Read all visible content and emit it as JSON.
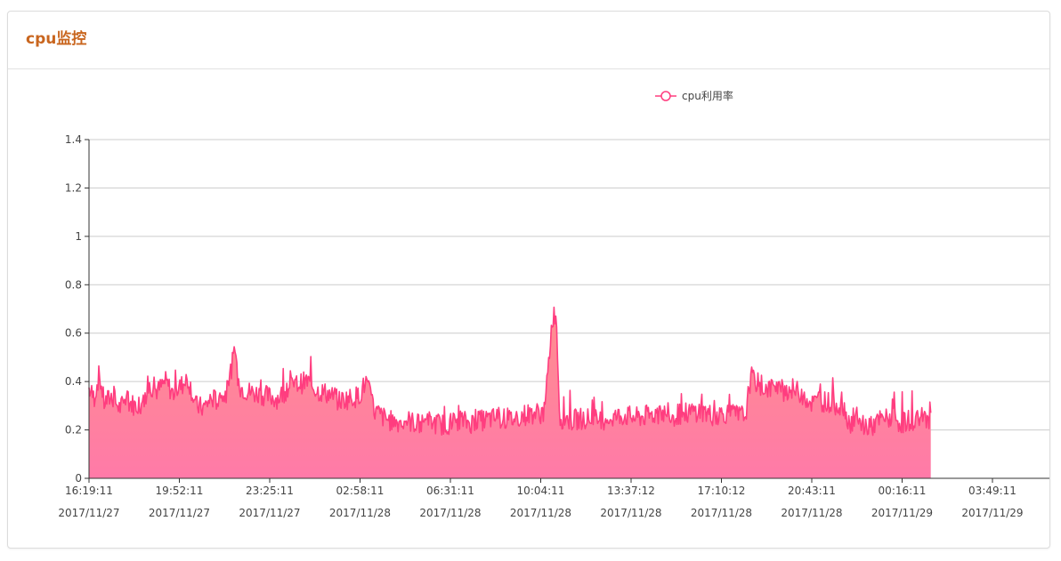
{
  "panel": {
    "title": "cpu监控"
  },
  "colors": {
    "title": "#c9661f",
    "line": "#ff3d7f",
    "area_top": "#ff8b8b",
    "area_bottom": "#ff7aa6",
    "grid": "#cccccc",
    "axis": "#333333"
  },
  "chart_data": {
    "type": "area",
    "title": "",
    "xlabel": "",
    "ylabel": "",
    "ylim": [
      0,
      1.4
    ],
    "yticks": [
      "0",
      "0.2",
      "0.4",
      "0.6",
      "0.8",
      "1",
      "1.2",
      "1.4"
    ],
    "grid": true,
    "legend_position": "top-center",
    "x_tick_labels": [
      [
        "16:19:11",
        "2017/11/27"
      ],
      [
        "19:52:11",
        "2017/11/27"
      ],
      [
        "23:25:11",
        "2017/11/27"
      ],
      [
        "02:58:11",
        "2017/11/28"
      ],
      [
        "06:31:11",
        "2017/11/28"
      ],
      [
        "10:04:11",
        "2017/11/28"
      ],
      [
        "13:37:12",
        "2017/11/28"
      ],
      [
        "17:10:12",
        "2017/11/28"
      ],
      [
        "20:43:11",
        "2017/11/28"
      ],
      [
        "00:16:11",
        "2017/11/29"
      ],
      [
        "03:49:11",
        "2017/11/29"
      ]
    ],
    "x_start": "2017/11/27 16:19:11",
    "x_end": "2017/11/29 05:30:00",
    "series": [
      {
        "name": "cpu利用率",
        "samples_hours": [
          [
            0.0,
            0.37
          ],
          [
            0.2,
            0.33
          ],
          [
            0.4,
            0.43
          ],
          [
            0.6,
            0.31
          ],
          [
            0.9,
            0.34
          ],
          [
            1.2,
            0.29
          ],
          [
            1.5,
            0.32
          ],
          [
            1.8,
            0.3
          ],
          [
            2.1,
            0.31
          ],
          [
            2.4,
            0.38
          ],
          [
            2.7,
            0.36
          ],
          [
            3.0,
            0.4
          ],
          [
            3.3,
            0.35
          ],
          [
            3.6,
            0.38
          ],
          [
            3.9,
            0.41
          ],
          [
            4.2,
            0.3
          ],
          [
            4.5,
            0.29
          ],
          [
            4.8,
            0.33
          ],
          [
            5.1,
            0.32
          ],
          [
            5.4,
            0.35
          ],
          [
            5.7,
            0.51
          ],
          [
            5.9,
            0.38
          ],
          [
            6.2,
            0.36
          ],
          [
            6.6,
            0.35
          ],
          [
            7.0,
            0.34
          ],
          [
            7.4,
            0.33
          ],
          [
            7.8,
            0.37
          ],
          [
            8.2,
            0.39
          ],
          [
            8.6,
            0.4
          ],
          [
            9.0,
            0.36
          ],
          [
            9.4,
            0.35
          ],
          [
            9.8,
            0.32
          ],
          [
            10.2,
            0.33
          ],
          [
            10.6,
            0.34
          ],
          [
            10.9,
            0.4
          ],
          [
            11.2,
            0.28
          ],
          [
            11.6,
            0.25
          ],
          [
            12.0,
            0.23
          ],
          [
            12.5,
            0.24
          ],
          [
            13.0,
            0.22
          ],
          [
            13.5,
            0.23
          ],
          [
            14.0,
            0.22
          ],
          [
            14.5,
            0.24
          ],
          [
            15.0,
            0.23
          ],
          [
            15.5,
            0.24
          ],
          [
            16.0,
            0.25
          ],
          [
            16.5,
            0.24
          ],
          [
            17.0,
            0.26
          ],
          [
            17.5,
            0.27
          ],
          [
            17.9,
            0.27
          ],
          [
            18.2,
            0.66
          ],
          [
            18.35,
            0.69
          ],
          [
            18.5,
            0.25
          ],
          [
            19.0,
            0.24
          ],
          [
            19.5,
            0.25
          ],
          [
            20.0,
            0.24
          ],
          [
            20.5,
            0.25
          ],
          [
            21.0,
            0.26
          ],
          [
            21.5,
            0.25
          ],
          [
            22.0,
            0.26
          ],
          [
            22.5,
            0.27
          ],
          [
            23.0,
            0.26
          ],
          [
            23.5,
            0.27
          ],
          [
            24.0,
            0.28
          ],
          [
            24.5,
            0.26
          ],
          [
            25.0,
            0.27
          ],
          [
            25.5,
            0.26
          ],
          [
            25.8,
            0.26
          ],
          [
            26.0,
            0.42
          ],
          [
            26.4,
            0.38
          ],
          [
            26.8,
            0.37
          ],
          [
            27.2,
            0.36
          ],
          [
            27.6,
            0.37
          ],
          [
            28.0,
            0.35
          ],
          [
            28.4,
            0.31
          ],
          [
            28.8,
            0.32
          ],
          [
            29.2,
            0.31
          ],
          [
            29.6,
            0.3
          ],
          [
            29.9,
            0.23
          ],
          [
            30.3,
            0.22
          ],
          [
            30.7,
            0.21
          ],
          [
            31.1,
            0.24
          ],
          [
            31.5,
            0.25
          ],
          [
            31.9,
            0.23
          ],
          [
            32.3,
            0.24
          ],
          [
            32.7,
            0.25
          ],
          [
            33.1,
            0.25
          ]
        ]
      }
    ]
  }
}
